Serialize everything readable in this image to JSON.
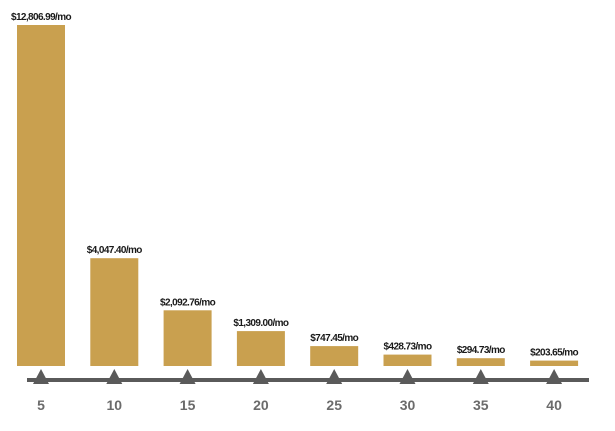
{
  "chart_data": {
    "type": "bar",
    "categories": [
      "5",
      "10",
      "15",
      "20",
      "25",
      "30",
      "35",
      "40"
    ],
    "values": [
      12806.99,
      4047.4,
      2092.76,
      1309.0,
      747.45,
      428.73,
      294.73,
      203.65
    ],
    "data_labels": [
      "$12,806.99/mo",
      "$4,047.40/mo",
      "$2,092.76/mo",
      "$1,309.00/mo",
      "$747.45/mo",
      "$428.73/mo",
      "$294.73/mo",
      "$203.65/mo"
    ],
    "ylim": [
      0,
      12806.99
    ],
    "grid": false,
    "bar_color": "#c9a04f",
    "axis_color": "#5a5a5a",
    "tick_label_color": "#6b6b6b"
  }
}
